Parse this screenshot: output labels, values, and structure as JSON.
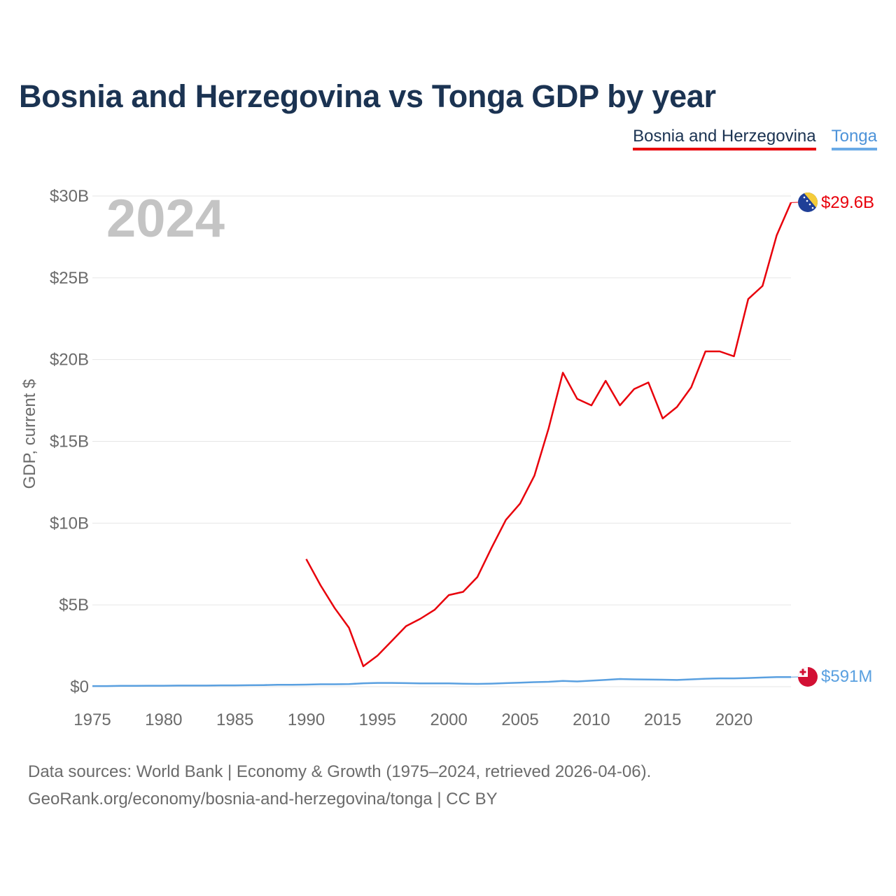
{
  "chart_data": {
    "type": "line",
    "title": "Bosnia and Herzegovina vs Tonga GDP by year",
    "ylabel": "GDP, current $",
    "xlabel": "",
    "year_label": "2024",
    "xlim": [
      1975,
      2024
    ],
    "ylim": [
      0,
      30
    ],
    "x_ticks": [
      1975,
      1980,
      1985,
      1990,
      1995,
      2000,
      2005,
      2010,
      2015,
      2020
    ],
    "y_ticks": [
      {
        "value": 0,
        "label": "$0"
      },
      {
        "value": 5,
        "label": "$5B"
      },
      {
        "value": 10,
        "label": "$10B"
      },
      {
        "value": 15,
        "label": "$15B"
      },
      {
        "value": 20,
        "label": "$20B"
      },
      {
        "value": 25,
        "label": "$25B"
      },
      {
        "value": 30,
        "label": "$30B"
      }
    ],
    "grid": true,
    "unit": "billion USD",
    "series": [
      {
        "name": "Bosnia and Herzegovina",
        "color": "#e8000b",
        "end_label": "$29.6B",
        "flag": "bosnia-flag-icon",
        "x": [
          1990,
          1991,
          1992,
          1993,
          1994,
          1995,
          1996,
          1997,
          1998,
          1999,
          2000,
          2001,
          2002,
          2003,
          2004,
          2005,
          2006,
          2007,
          2008,
          2009,
          2010,
          2011,
          2012,
          2013,
          2014,
          2015,
          2016,
          2017,
          2018,
          2019,
          2020,
          2021,
          2022,
          2023,
          2024
        ],
        "values": [
          7.8,
          6.2,
          4.8,
          3.6,
          1.25,
          1.9,
          2.8,
          3.7,
          4.15,
          4.7,
          5.6,
          5.8,
          6.7,
          8.5,
          10.2,
          11.2,
          12.9,
          15.8,
          19.2,
          17.6,
          17.2,
          18.7,
          17.2,
          18.2,
          18.6,
          16.4,
          17.1,
          18.3,
          20.5,
          20.5,
          20.2,
          23.7,
          24.5,
          27.6,
          29.6
        ]
      },
      {
        "name": "Tonga",
        "color": "#5aa0e0",
        "end_label": "$591M",
        "flag": "tonga-flag-icon",
        "x": [
          1975,
          1976,
          1977,
          1978,
          1979,
          1980,
          1981,
          1982,
          1983,
          1984,
          1985,
          1986,
          1987,
          1988,
          1989,
          1990,
          1991,
          1992,
          1993,
          1994,
          1995,
          1996,
          1997,
          1998,
          1999,
          2000,
          2001,
          2002,
          2003,
          2004,
          2005,
          2006,
          2007,
          2008,
          2009,
          2010,
          2011,
          2012,
          2013,
          2014,
          2015,
          2016,
          2017,
          2018,
          2019,
          2020,
          2021,
          2022,
          2023,
          2024
        ],
        "values": [
          0.04,
          0.04,
          0.05,
          0.05,
          0.06,
          0.06,
          0.07,
          0.07,
          0.07,
          0.08,
          0.08,
          0.09,
          0.1,
          0.12,
          0.12,
          0.13,
          0.15,
          0.15,
          0.16,
          0.21,
          0.23,
          0.23,
          0.22,
          0.2,
          0.2,
          0.2,
          0.18,
          0.17,
          0.19,
          0.22,
          0.25,
          0.28,
          0.3,
          0.35,
          0.32,
          0.37,
          0.42,
          0.47,
          0.45,
          0.44,
          0.43,
          0.41,
          0.45,
          0.49,
          0.51,
          0.51,
          0.53,
          0.56,
          0.59,
          0.591
        ]
      }
    ],
    "footer": {
      "line1": "Data sources: World Bank | Economy & Growth (1975–2024, retrieved 2026-04-06).",
      "line2": "GeoRank.org/economy/bosnia-and-herzegovina/tonga | CC BY"
    }
  }
}
